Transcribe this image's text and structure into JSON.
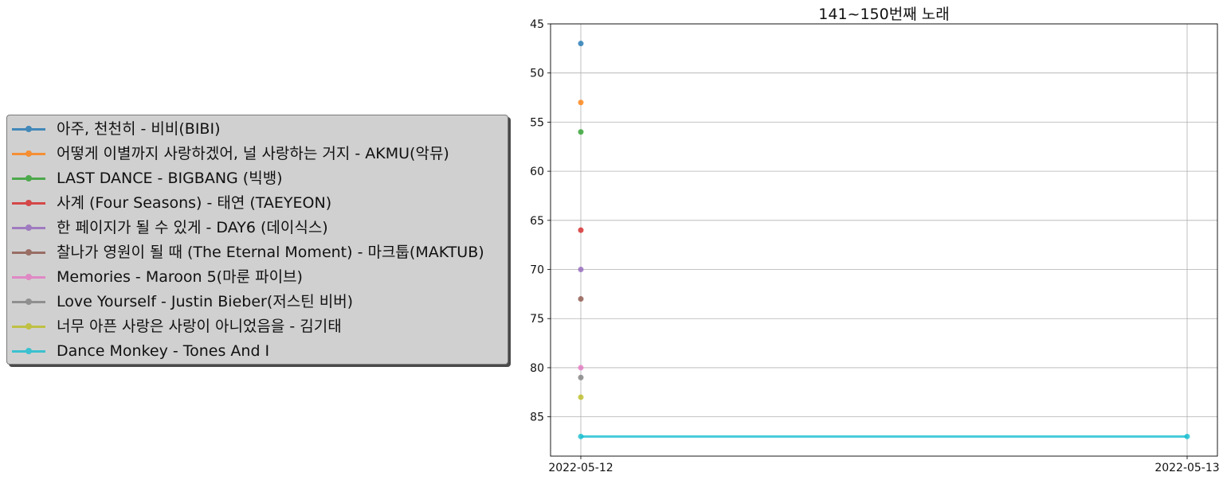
{
  "chart_data": {
    "type": "line",
    "title": "141~150번째 노래",
    "xlabel": "",
    "ylabel": "",
    "x": [
      "2022-05-12",
      "2022-05-13"
    ],
    "yticks": [
      45,
      50,
      55,
      60,
      65,
      70,
      75,
      80,
      85
    ],
    "ylim": [
      89,
      45
    ],
    "y_inverted": true,
    "grid": true,
    "legend_placement": "left",
    "series": [
      {
        "name": "아주, 천천히 - 비비(BIBI)",
        "color": "#1f77b4",
        "values": [
          47,
          null
        ]
      },
      {
        "name": "어떻게 이별까지 사랑하겠어, 널 사랑하는 거지 - AKMU(악뮤)",
        "color": "#ff7f0e",
        "values": [
          53,
          null
        ]
      },
      {
        "name": "LAST DANCE - BIGBANG (빅뱅)",
        "color": "#2ca02c",
        "values": [
          56,
          null
        ]
      },
      {
        "name": "사계 (Four Seasons) - 태연 (TAEYEON)",
        "color": "#d62728",
        "values": [
          66,
          null
        ]
      },
      {
        "name": "한 페이지가 될 수 있게 - DAY6 (데이식스)",
        "color": "#9467bd",
        "values": [
          70,
          null
        ]
      },
      {
        "name": "찰나가 영원이 될 때 (The Eternal Moment) - 마크툽(MAKTUB)",
        "color": "#8c564b",
        "values": [
          73,
          null
        ]
      },
      {
        "name": "Memories - Maroon 5(마룬 파이브)",
        "color": "#e377c2",
        "values": [
          80,
          null
        ]
      },
      {
        "name": "Love Yourself - Justin Bieber(저스틴 비버)",
        "color": "#7f7f7f",
        "values": [
          81,
          null
        ]
      },
      {
        "name": "너무 아픈 사랑은 사랑이 아니었음을 - 김기태",
        "color": "#bcbd22",
        "values": [
          83,
          null
        ]
      },
      {
        "name": "Dance Monkey - Tones And I",
        "color": "#17becf",
        "values": [
          87,
          87
        ]
      }
    ]
  }
}
